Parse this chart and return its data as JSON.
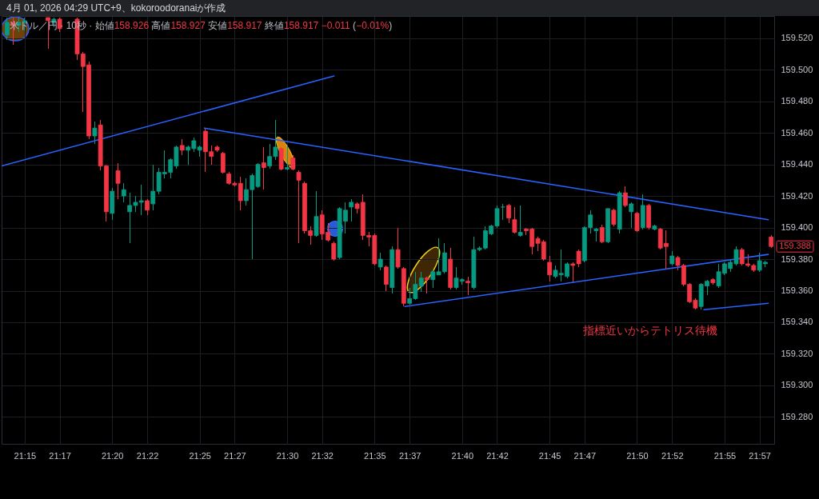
{
  "chart_data": {
    "type": "candlestick",
    "title": "4月 01, 2026 04:29 UTC+9、kokoroodoranaiが作成",
    "subtitle": "米ドル／円 · 10秒 · 始値158.926 高値158.927 安値158.917 終値158.917 −0.011 (−0.01%)",
    "annotations": [
      "指標近いからテトリス待機",
      "159.388"
    ],
    "xlim": [
      21.228,
      21.964
    ],
    "xticks": [
      {
        "value": 21.25,
        "label": "21:15"
      },
      {
        "value": 21.2833,
        "label": "21:17"
      },
      {
        "value": 21.3333,
        "label": "21:20"
      },
      {
        "value": 21.3667,
        "label": "21:22"
      },
      {
        "value": 21.4167,
        "label": "21:25"
      },
      {
        "value": 21.45,
        "label": "21:27"
      },
      {
        "value": 21.5,
        "label": "21:30"
      },
      {
        "value": 21.5333,
        "label": "21:32"
      },
      {
        "value": 21.5833,
        "label": "21:35"
      },
      {
        "value": 21.6167,
        "label": "21:37"
      },
      {
        "value": 21.6667,
        "label": "21:40"
      },
      {
        "value": 21.7,
        "label": "21:42"
      },
      {
        "value": 21.75,
        "label": "21:45"
      },
      {
        "value": 21.7833,
        "label": "21:47"
      },
      {
        "value": 21.8333,
        "label": "21:50"
      },
      {
        "value": 21.8667,
        "label": "21:52"
      },
      {
        "value": 21.9167,
        "label": "21:55"
      },
      {
        "value": 21.95,
        "label": "21:57"
      }
    ],
    "ylim": [
      159.263,
      159.534
    ],
    "yticks": [
      {
        "value": 159.28,
        "label": "159.280"
      },
      {
        "value": 159.3,
        "label": "159.300"
      },
      {
        "value": 159.32,
        "label": "159.320"
      },
      {
        "value": 159.34,
        "label": "159.340"
      },
      {
        "value": 159.36,
        "label": "159.360"
      },
      {
        "value": 159.38,
        "label": "159.380"
      },
      {
        "value": 159.4,
        "label": "159.400"
      },
      {
        "value": 159.42,
        "label": "159.420"
      },
      {
        "value": 159.44,
        "label": "159.440"
      },
      {
        "value": 159.46,
        "label": "159.460"
      },
      {
        "value": 159.48,
        "label": "159.480"
      },
      {
        "value": 159.5,
        "label": "159.500"
      },
      {
        "value": 159.52,
        "label": "159.520"
      }
    ],
    "grid": true,
    "x": [
      21.2333,
      21.2389,
      21.2444,
      21.25,
      21.2722,
      21.2778,
      21.2833,
      21.3,
      21.3056,
      21.3111,
      21.3167,
      21.3222,
      21.3278,
      21.3333,
      21.3389,
      21.3444,
      21.35,
      21.3556,
      21.3611,
      21.3667,
      21.3722,
      21.3778,
      21.3833,
      21.3889,
      21.3944,
      21.4,
      21.4056,
      21.4111,
      21.4167,
      21.4222,
      21.4278,
      21.4333,
      21.4389,
      21.4444,
      21.45,
      21.4556,
      21.4611,
      21.4667,
      21.4722,
      21.4778,
      21.4833,
      21.4889,
      21.4944,
      21.5,
      21.5056,
      21.5111,
      21.5167,
      21.5222,
      21.5278,
      21.5333,
      21.5389,
      21.5444,
      21.55,
      21.5556,
      21.5611,
      21.5667,
      21.5722,
      21.5778,
      21.5833,
      21.5889,
      21.5944,
      21.6,
      21.6056,
      21.6111,
      21.6167,
      21.6222,
      21.6278,
      21.6333,
      21.6389,
      21.6444,
      21.65,
      21.6556,
      21.6611,
      21.6667,
      21.6722,
      21.6778,
      21.6833,
      21.6889,
      21.6944,
      21.7,
      21.7056,
      21.7111,
      21.7167,
      21.7222,
      21.7278,
      21.7333,
      21.7389,
      21.7444,
      21.75,
      21.7556,
      21.7611,
      21.7667,
      21.7722,
      21.7778,
      21.7833,
      21.7889,
      21.7944,
      21.8,
      21.8056,
      21.8111,
      21.8167,
      21.8222,
      21.8278,
      21.8333,
      21.8389,
      21.8444,
      21.85,
      21.8556,
      21.8611,
      21.8667,
      21.8722,
      21.8778,
      21.8833,
      21.8889,
      21.8944,
      21.9,
      21.9056,
      21.9111,
      21.9167,
      21.9222,
      21.9278,
      21.9333,
      21.9389,
      21.9444,
      21.95,
      21.9556,
      21.9611
    ],
    "ohlc": [
      [
        159.522,
        159.533,
        159.519,
        159.53
      ],
      [
        159.53,
        159.533,
        159.516,
        159.528
      ],
      [
        159.528,
        159.533,
        159.524,
        159.53
      ],
      [
        159.53,
        159.533,
        159.525,
        159.531
      ],
      [
        159.533,
        159.533,
        159.513,
        159.531
      ],
      [
        159.53,
        159.533,
        159.527,
        159.532
      ],
      [
        159.532,
        159.533,
        159.524,
        159.526
      ],
      [
        159.532,
        159.533,
        159.506,
        159.51
      ],
      [
        159.51,
        159.511,
        159.473,
        159.502
      ],
      [
        159.503,
        159.505,
        159.456,
        159.458
      ],
      [
        159.458,
        159.467,
        159.453,
        159.463
      ],
      [
        159.465,
        159.468,
        159.436,
        159.439
      ],
      [
        159.439,
        159.44,
        159.404,
        159.41
      ],
      [
        159.409,
        159.425,
        159.405,
        159.423
      ],
      [
        159.436,
        159.441,
        159.418,
        159.428
      ],
      [
        159.42,
        159.428,
        159.416,
        159.424
      ],
      [
        159.41,
        159.422,
        159.39,
        159.414
      ],
      [
        159.414,
        159.42,
        159.41,
        159.416
      ],
      [
        159.416,
        159.427,
        159.408,
        159.417
      ],
      [
        159.417,
        159.418,
        159.408,
        159.411
      ],
      [
        159.415,
        159.44,
        159.411,
        159.423
      ],
      [
        159.423,
        159.438,
        159.421,
        159.435
      ],
      [
        159.434,
        159.449,
        159.431,
        159.435
      ],
      [
        159.435,
        159.444,
        159.431,
        159.443
      ],
      [
        159.439,
        159.452,
        159.437,
        159.451
      ],
      [
        159.452,
        159.456,
        159.446,
        159.449
      ],
      [
        159.449,
        159.452,
        159.44,
        159.451
      ],
      [
        159.45,
        159.457,
        159.448,
        159.455
      ],
      [
        159.449,
        159.452,
        159.445,
        159.451
      ],
      [
        159.461,
        159.463,
        159.435,
        159.448
      ],
      [
        159.448,
        159.452,
        159.44,
        159.445
      ],
      [
        159.451,
        159.452,
        159.448,
        159.449
      ],
      [
        159.447,
        159.448,
        159.434,
        159.435
      ],
      [
        159.434,
        159.435,
        159.427,
        159.428
      ],
      [
        159.428,
        159.429,
        159.426,
        159.427
      ],
      [
        159.428,
        159.432,
        159.411,
        159.417
      ],
      [
        159.417,
        159.431,
        159.414,
        159.424
      ],
      [
        159.424,
        159.434,
        159.38,
        159.433
      ],
      [
        159.426,
        159.441,
        159.425,
        159.44
      ],
      [
        159.441,
        159.451,
        159.424,
        159.438
      ],
      [
        159.439,
        159.453,
        159.437,
        159.445
      ],
      [
        159.445,
        159.468,
        159.443,
        159.451
      ],
      [
        159.45,
        159.451,
        159.436,
        159.437
      ],
      [
        159.437,
        159.452,
        159.436,
        159.438
      ],
      [
        159.444,
        159.446,
        159.436,
        159.437
      ],
      [
        159.435,
        159.436,
        159.39,
        159.43
      ],
      [
        159.428,
        159.429,
        159.396,
        159.398
      ],
      [
        159.398,
        159.401,
        159.389,
        159.395
      ],
      [
        159.395,
        159.423,
        159.394,
        159.407
      ],
      [
        159.408,
        159.411,
        159.392,
        159.396
      ],
      [
        159.397,
        159.403,
        159.391,
        159.392
      ],
      [
        159.39,
        159.391,
        159.379,
        159.38
      ],
      [
        159.381,
        159.413,
        159.38,
        159.412
      ],
      [
        159.404,
        159.416,
        159.396,
        159.411
      ],
      [
        159.413,
        159.418,
        159.404,
        159.416
      ],
      [
        159.415,
        159.416,
        159.409,
        159.412
      ],
      [
        159.416,
        159.421,
        159.392,
        159.395
      ],
      [
        159.395,
        159.397,
        159.388,
        159.394
      ],
      [
        159.395,
        159.396,
        159.376,
        159.377
      ],
      [
        159.375,
        159.384,
        159.373,
        159.38
      ],
      [
        159.375,
        159.376,
        159.36,
        159.364
      ],
      [
        159.362,
        159.388,
        159.358,
        159.386
      ],
      [
        159.386,
        159.4,
        159.374,
        159.375
      ],
      [
        159.374,
        159.375,
        159.35,
        159.352
      ],
      [
        159.352,
        159.362,
        159.351,
        159.355
      ],
      [
        159.355,
        159.372,
        159.354,
        159.364
      ],
      [
        159.363,
        159.372,
        159.359,
        159.368
      ],
      [
        159.368,
        159.369,
        159.358,
        159.367
      ],
      [
        159.367,
        159.373,
        159.362,
        159.372
      ],
      [
        159.37,
        159.393,
        159.37,
        159.372
      ],
      [
        159.372,
        159.39,
        159.371,
        159.384
      ],
      [
        159.38,
        159.387,
        159.361,
        159.362
      ],
      [
        159.362,
        159.375,
        159.361,
        159.368
      ],
      [
        159.366,
        159.368,
        159.364,
        159.367
      ],
      [
        159.366,
        159.369,
        159.357,
        159.365
      ],
      [
        159.362,
        159.394,
        159.361,
        159.386
      ],
      [
        159.386,
        159.388,
        159.385,
        159.387
      ],
      [
        159.387,
        159.401,
        159.386,
        159.398
      ],
      [
        159.396,
        159.402,
        159.395,
        159.401
      ],
      [
        159.401,
        159.414,
        159.4,
        159.412
      ],
      [
        159.413,
        159.415,
        159.405,
        159.413
      ],
      [
        159.414,
        159.415,
        159.403,
        159.406
      ],
      [
        159.405,
        159.413,
        159.396,
        159.397
      ],
      [
        159.395,
        159.414,
        159.394,
        159.397
      ],
      [
        159.399,
        159.4,
        159.395,
        159.398
      ],
      [
        159.399,
        159.4,
        159.383,
        159.388
      ],
      [
        159.393,
        159.394,
        159.385,
        159.39
      ],
      [
        159.391,
        159.392,
        159.379,
        159.38
      ],
      [
        159.378,
        159.382,
        159.366,
        159.37
      ],
      [
        159.369,
        159.376,
        159.368,
        159.373
      ],
      [
        159.37,
        159.386,
        159.366,
        159.371
      ],
      [
        159.369,
        159.378,
        159.368,
        159.377
      ],
      [
        159.377,
        159.378,
        159.365,
        159.376
      ],
      [
        159.385,
        159.386,
        159.375,
        159.377
      ],
      [
        159.379,
        159.401,
        159.378,
        159.4
      ],
      [
        159.4,
        159.411,
        159.396,
        159.408
      ],
      [
        159.398,
        159.4,
        159.391,
        159.399
      ],
      [
        159.4,
        159.402,
        159.39,
        159.391
      ],
      [
        159.391,
        159.412,
        159.39,
        159.412
      ],
      [
        159.411,
        159.412,
        159.401,
        159.402
      ],
      [
        159.399,
        159.423,
        159.396,
        159.422
      ],
      [
        159.422,
        159.426,
        159.413,
        159.414
      ],
      [
        159.41,
        159.416,
        159.4,
        159.415
      ],
      [
        159.409,
        159.41,
        159.397,
        159.398
      ],
      [
        159.4,
        159.421,
        159.399,
        159.414
      ],
      [
        159.414,
        159.415,
        159.399,
        159.4
      ],
      [
        159.399,
        159.402,
        159.398,
        159.401
      ],
      [
        159.399,
        159.4,
        159.386,
        159.387
      ],
      [
        159.39,
        159.398,
        159.374,
        159.388
      ],
      [
        159.377,
        159.385,
        159.376,
        159.382
      ],
      [
        159.381,
        159.382,
        159.373,
        159.376
      ],
      [
        159.376,
        159.377,
        159.363,
        159.364
      ],
      [
        159.364,
        159.365,
        159.352,
        159.353
      ],
      [
        159.354,
        159.355,
        159.348,
        159.349
      ],
      [
        159.35,
        159.365,
        159.348,
        159.364
      ],
      [
        159.363,
        159.367,
        159.357,
        159.366
      ],
      [
        159.367,
        159.368,
        159.364,
        159.365
      ],
      [
        159.363,
        159.377,
        159.362,
        159.372
      ],
      [
        159.371,
        159.378,
        159.37,
        159.377
      ],
      [
        159.374,
        159.38,
        159.372,
        159.378
      ],
      [
        159.377,
        159.388,
        159.376,
        159.386
      ],
      [
        159.386,
        159.387,
        159.376,
        159.377
      ],
      [
        159.377,
        159.383,
        159.375,
        159.376
      ],
      [
        159.376,
        159.377,
        159.372,
        159.373
      ],
      [
        159.373,
        159.384,
        159.372,
        159.379
      ],
      [
        159.377,
        159.379,
        159.375,
        159.378
      ],
      [
        159.394,
        159.395,
        159.387,
        159.388
      ]
    ],
    "colors": [
      "#089981",
      "#f23645",
      "#089981",
      "#089981",
      "#f23645",
      "#089981",
      "#f23645",
      "#f23645",
      "#f23645",
      "#f23645",
      "#089981",
      "#f23645",
      "#f23645",
      "#089981",
      "#f23645",
      "#089981",
      "#089981",
      "#089981",
      "#089981",
      "#f23645",
      "#089981",
      "#089981",
      "#089981",
      "#089981",
      "#089981",
      "#f23645",
      "#089981",
      "#089981",
      "#089981",
      "#f23645",
      "#f23645",
      "#f23645",
      "#f23645",
      "#f23645",
      "#f23645",
      "#f23645",
      "#089981",
      "#089981",
      "#089981",
      "#f23645",
      "#089981",
      "#089981",
      "#f23645",
      "#089981",
      "#f23645",
      "#f23645",
      "#f23645",
      "#f23645",
      "#089981",
      "#f23645",
      "#f23645",
      "#f23645",
      "#089981",
      "#089981",
      "#089981",
      "#f23645",
      "#f23645",
      "#f23645",
      "#f23645",
      "#089981",
      "#f23645",
      "#089981",
      "#f23645",
      "#f23645",
      "#089981",
      "#089981",
      "#089981",
      "#f23645",
      "#089981",
      "#089981",
      "#089981",
      "#f23645",
      "#089981",
      "#089981",
      "#f23645",
      "#089981",
      "#089981",
      "#089981",
      "#089981",
      "#089981",
      "#089981",
      "#f23645",
      "#f23645",
      "#089981",
      "#f23645",
      "#f23645",
      "#f23645",
      "#f23645",
      "#f23645",
      "#089981",
      "#089981",
      "#089981",
      "#f23645",
      "#f23645",
      "#089981",
      "#089981",
      "#089981",
      "#f23645",
      "#089981",
      "#f23645",
      "#089981",
      "#f23645",
      "#089981",
      "#f23645",
      "#089981",
      "#f23645",
      "#089981",
      "#f23645",
      "#f23645",
      "#089981",
      "#f23645",
      "#f23645",
      "#f23645",
      "#f23645",
      "#089981",
      "#089981",
      "#f23645",
      "#089981",
      "#089981",
      "#089981",
      "#089981",
      "#f23645",
      "#f23645",
      "#f23645",
      "#089981",
      "#089981",
      "#f23645"
    ],
    "series": [
      {
        "type": "line",
        "color": "#2962ff",
        "x": [
          21.228,
          21.5447
        ],
        "values": [
          159.439,
          159.496
        ]
      },
      {
        "type": "line",
        "color": "#2962ff",
        "x": [
          21.4212,
          21.9583
        ],
        "values": [
          159.463,
          159.405
        ]
      },
      {
        "type": "line",
        "color": "#2962ff",
        "x": [
          21.6121,
          21.9583
        ],
        "values": [
          159.35,
          159.383
        ]
      },
      {
        "type": "line",
        "color": "#2962ff",
        "x": [
          21.897,
          21.9583
        ],
        "values": [
          159.348,
          159.352
        ]
      }
    ]
  }
}
